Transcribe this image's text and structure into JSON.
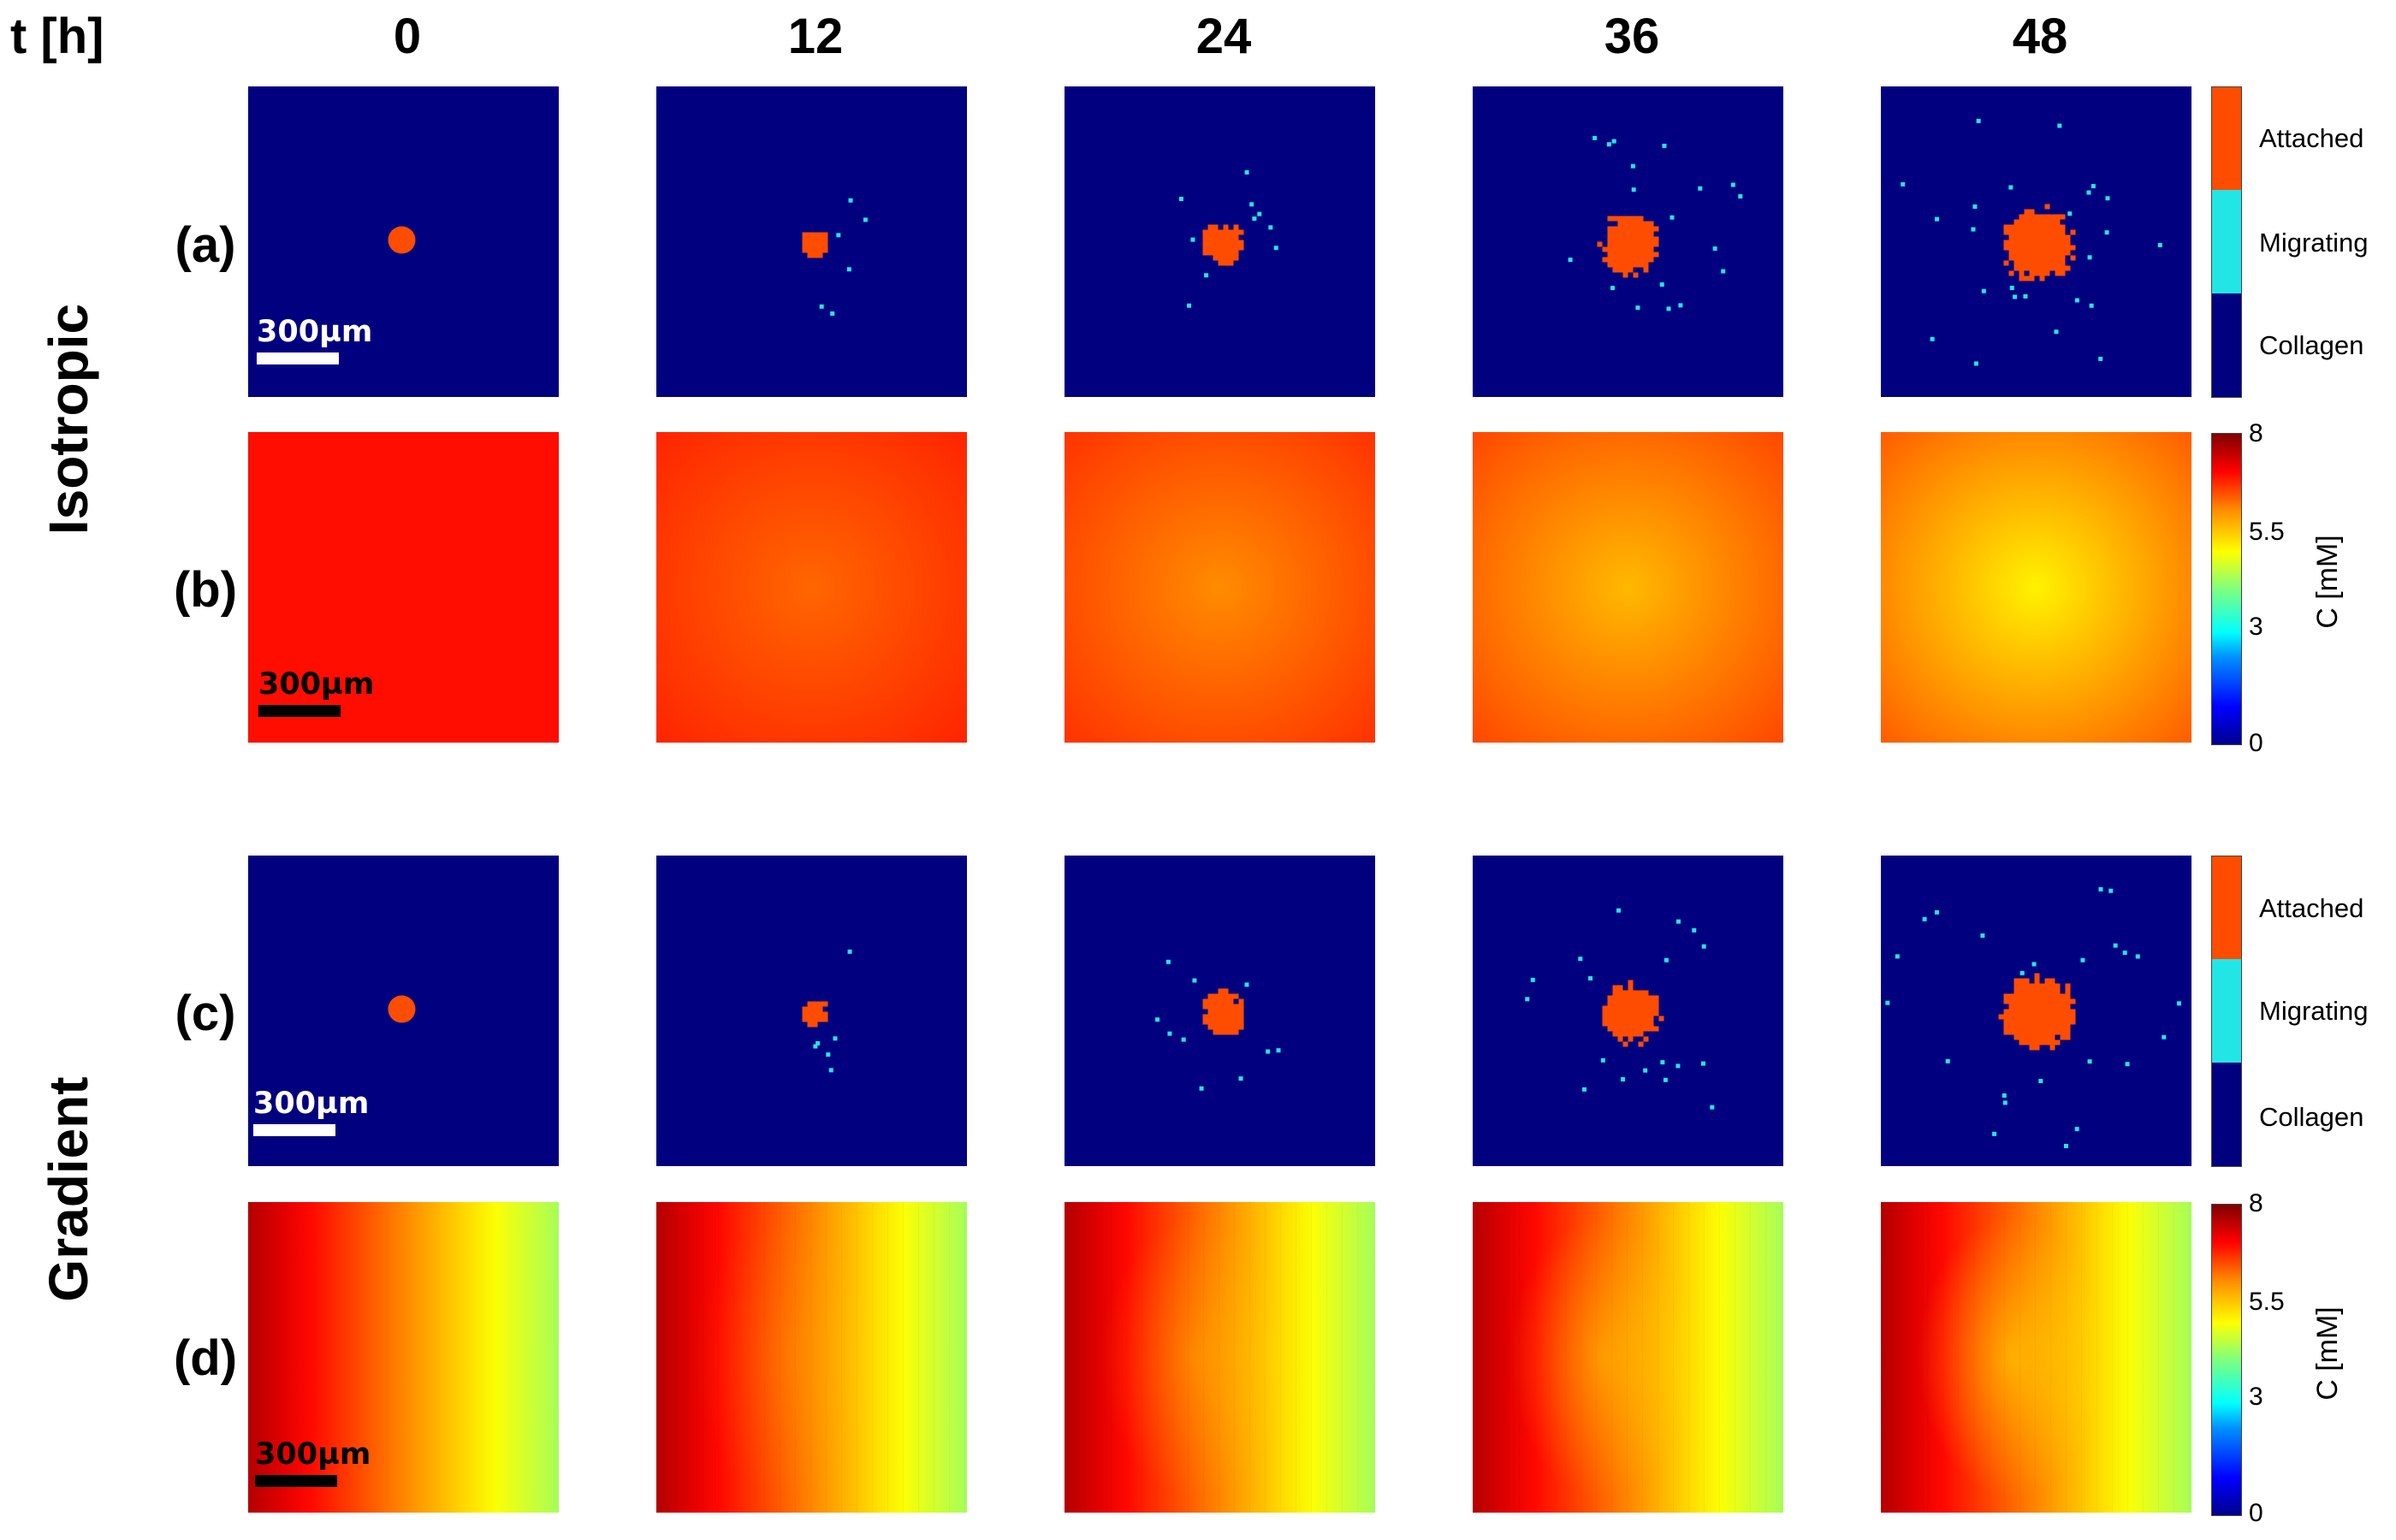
{
  "time_axis_label": "t [h]",
  "time_labels": [
    "0",
    "12",
    "24",
    "36",
    "48"
  ],
  "group_labels": {
    "isotropic": "Isotropic",
    "gradient": "Gradient"
  },
  "panel_labels": {
    "a": "(a)",
    "b": "(b)",
    "c": "(c)",
    "d": "(d)"
  },
  "scale_bar_text": "300µm",
  "cell_legend": {
    "attached": "Attached",
    "migrating": "Migrating",
    "collagen": "Collagen"
  },
  "colorbar": {
    "title": "C [mM]",
    "ticks": [
      "8",
      "5.5",
      "3",
      "0"
    ]
  },
  "colors": {
    "collagen": "#010180",
    "attached": "#ff4d00",
    "migrating": "#22e6e6",
    "scale_white": "#ffffff",
    "scale_black": "#000000"
  },
  "isotropic_concentration_mM": {
    "edge": [
      6.9,
      6.75,
      6.65,
      6.5,
      6.35
    ],
    "center": [
      6.9,
      6.2,
      5.9,
      5.55,
      5.1
    ]
  },
  "gradient_concentration_mM": {
    "left": 7.6,
    "right": 4.3
  }
}
